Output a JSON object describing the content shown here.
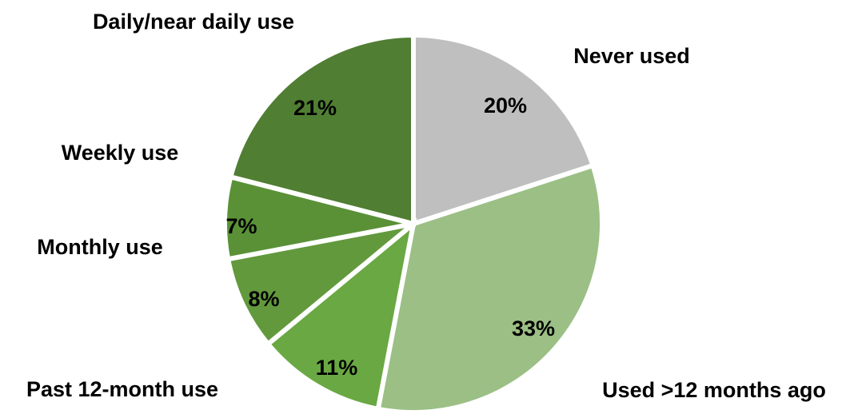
{
  "chart_data": {
    "type": "pie",
    "title": "",
    "slices": [
      {
        "label": "Never used",
        "value": 20,
        "value_label": "20%",
        "color": "#bfbfbf"
      },
      {
        "label": "Used >12 months ago",
        "value": 33,
        "value_label": "33%",
        "color": "#9bbf85"
      },
      {
        "label": "Past 12-month use",
        "value": 11,
        "value_label": "11%",
        "color": "#6aa843"
      },
      {
        "label": "Monthly use",
        "value": 8,
        "value_label": "8%",
        "color": "#62993d"
      },
      {
        "label": "Weekly use",
        "value": 7,
        "value_label": "7%",
        "color": "#5a9137"
      },
      {
        "label": "Daily/near daily use",
        "value": 21,
        "value_label": "21%",
        "color": "#507e32"
      }
    ],
    "start": "12 o'clock",
    "direction": "clockwise",
    "legend": "none"
  }
}
